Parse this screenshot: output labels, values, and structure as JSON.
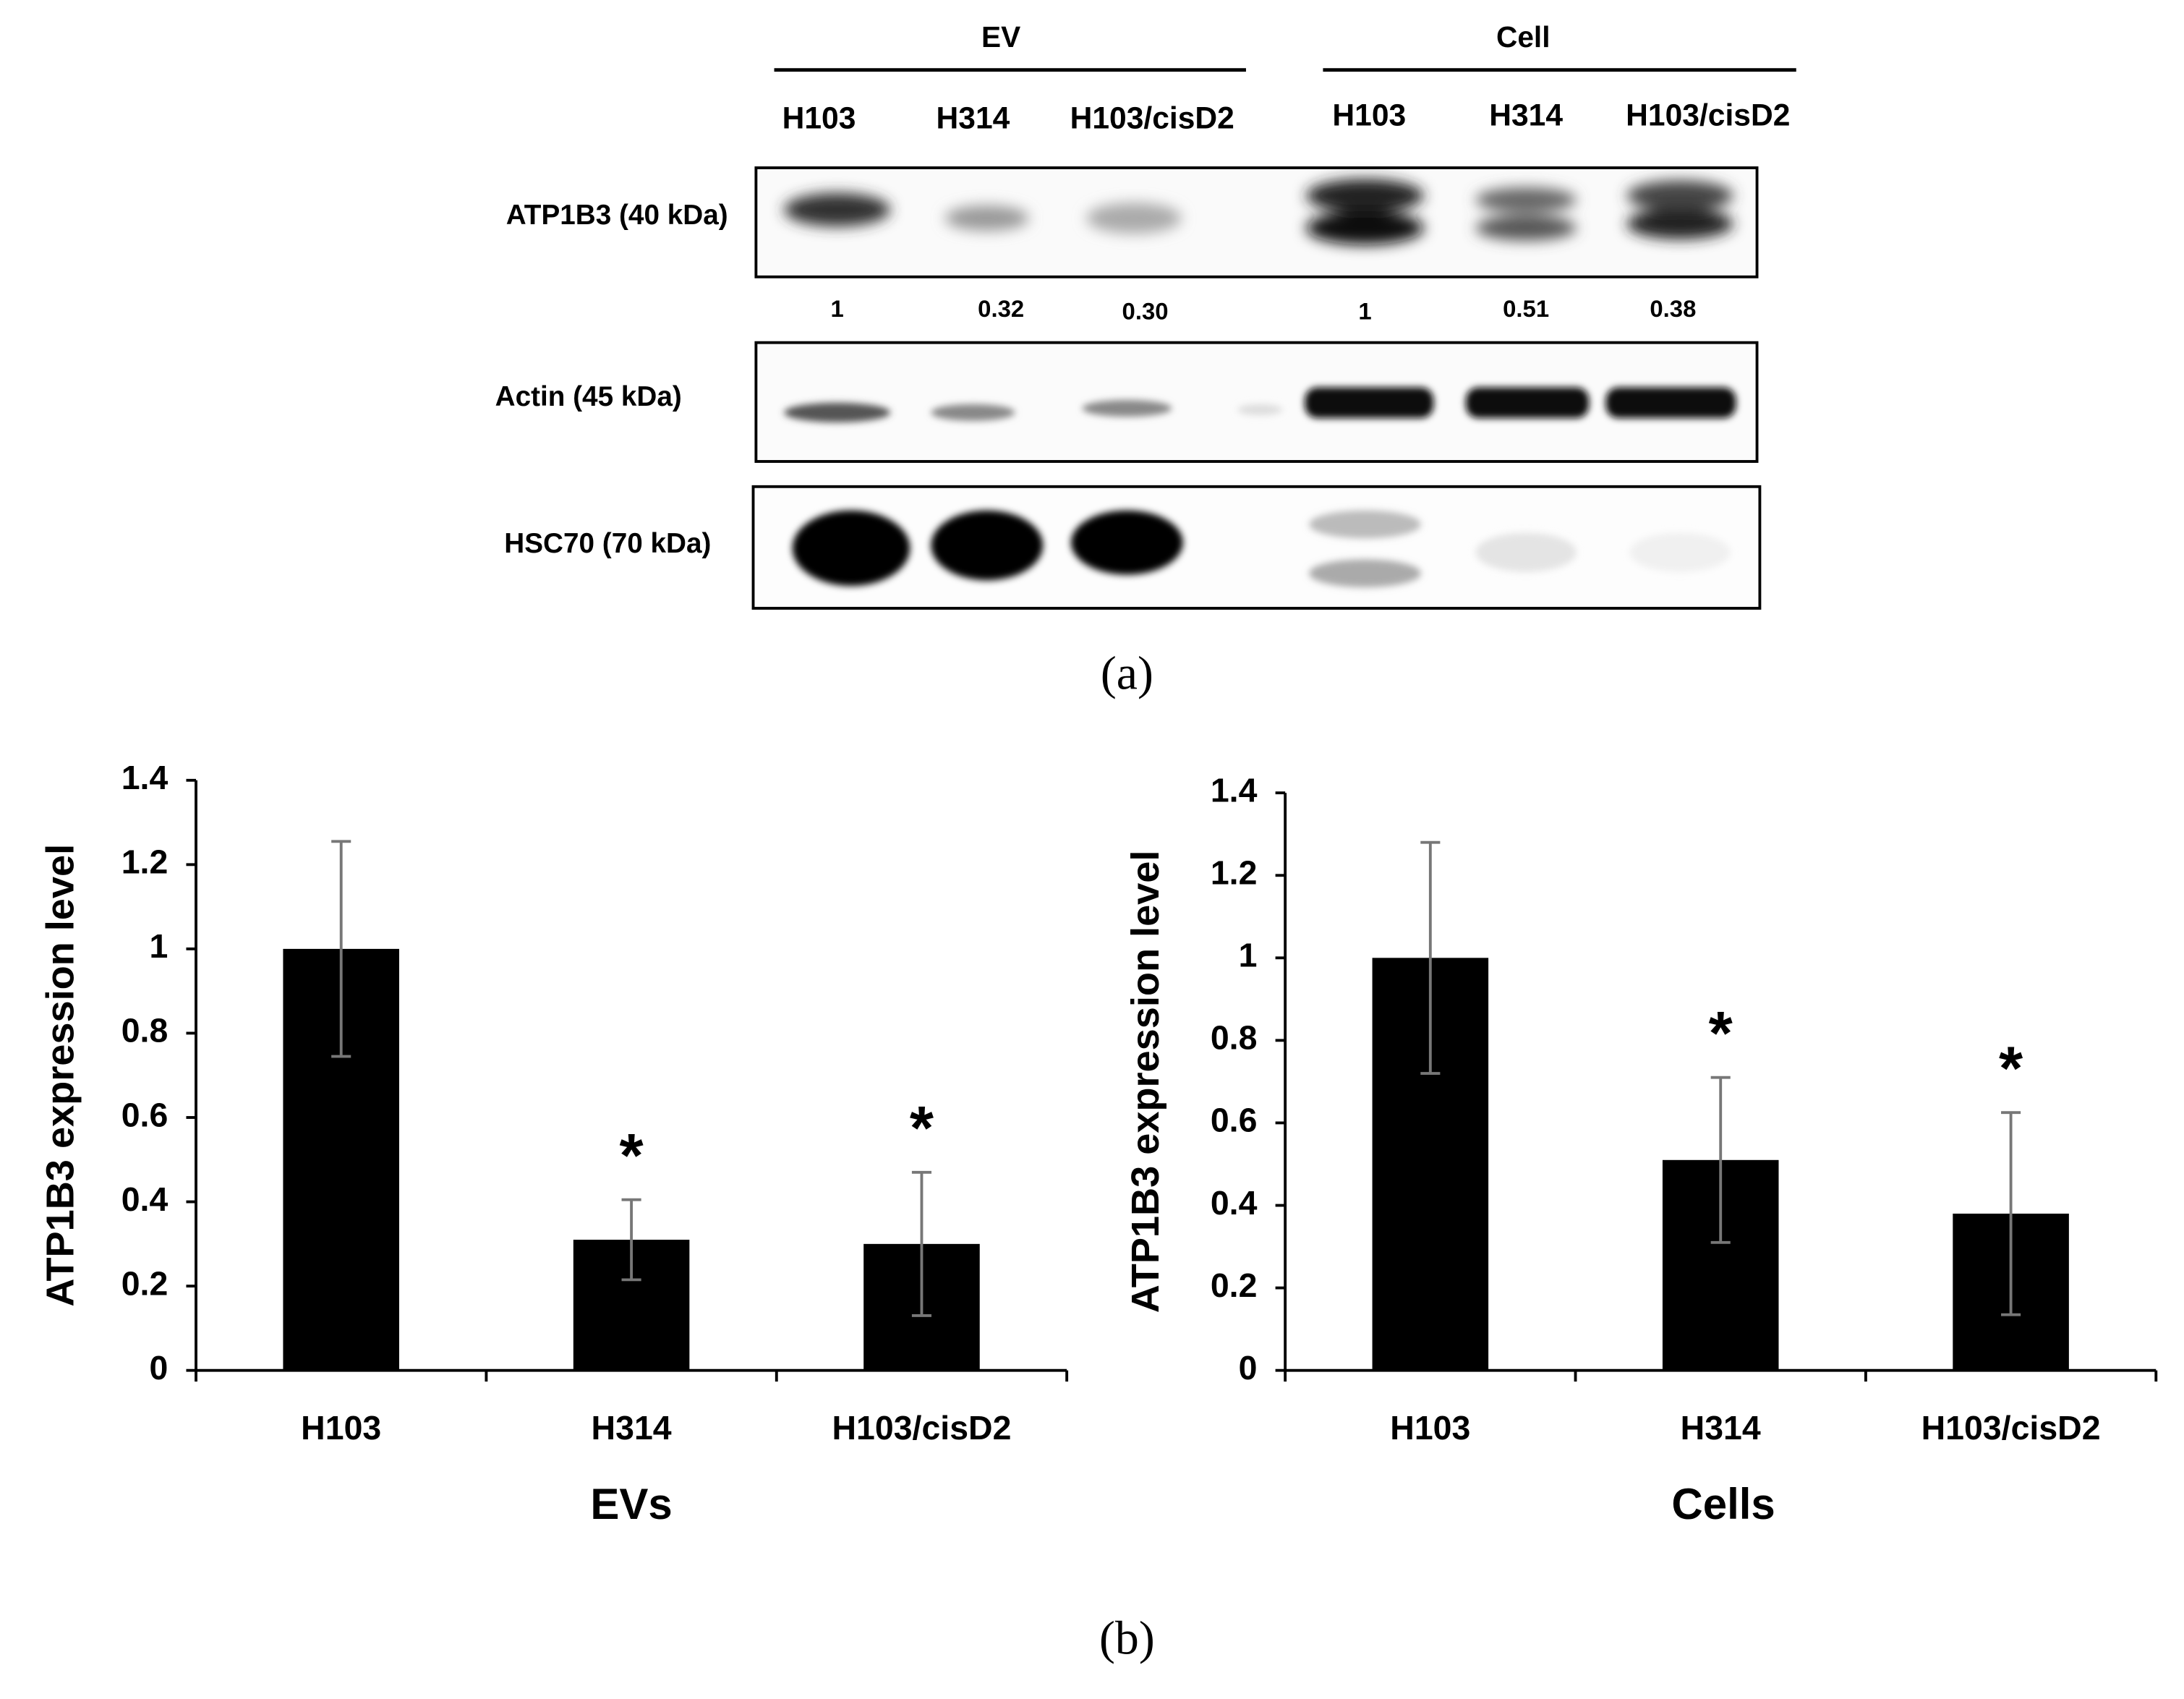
{
  "western_blot": {
    "groups": [
      {
        "label": "EV",
        "lanes": [
          "H103",
          "H314",
          "H103/cisD2"
        ]
      },
      {
        "label": "Cell",
        "lanes": [
          "H103",
          "H314",
          "H103/cisD2"
        ]
      }
    ],
    "rows": [
      "ATP1B3 (40 kDa)",
      "Actin (45 kDa)",
      "HSC70 (70 kDa)"
    ],
    "quantification": [
      "1",
      "0.32",
      "0.30",
      "1",
      "0.51",
      "0.38"
    ]
  },
  "panel_labels": [
    "(a)",
    "(b)"
  ],
  "chart_data": [
    {
      "type": "bar",
      "x_label": "EVs",
      "y_label": "ATP1B3 expression level",
      "categories": [
        "H103",
        "H314",
        "H103/cisD2"
      ],
      "values": [
        1,
        0.31,
        0.3
      ],
      "errors": [
        0.255,
        0.095,
        0.17
      ],
      "value_annotations": [
        null,
        "*",
        "*"
      ],
      "color": "#000000",
      "error_color": "#777777",
      "ylim": [
        0,
        1.4
      ],
      "yticks": [
        0,
        0.2,
        0.4,
        0.6,
        0.8,
        1,
        1.2,
        1.4
      ]
    },
    {
      "type": "bar",
      "x_label": "Cells",
      "y_label": "ATP1B3 expression level",
      "categories": [
        "H103",
        "H314",
        "H103/cisD2"
      ],
      "values": [
        1,
        0.51,
        0.38
      ],
      "errors": [
        0.28,
        0.2,
        0.245
      ],
      "value_annotations": [
        null,
        "*",
        "*"
      ],
      "color": "#000000",
      "error_color": "#777777",
      "ylim": [
        0,
        1.4
      ],
      "yticks": [
        0,
        0.2,
        0.4,
        0.6,
        0.8,
        1,
        1.2,
        1.4
      ]
    }
  ]
}
